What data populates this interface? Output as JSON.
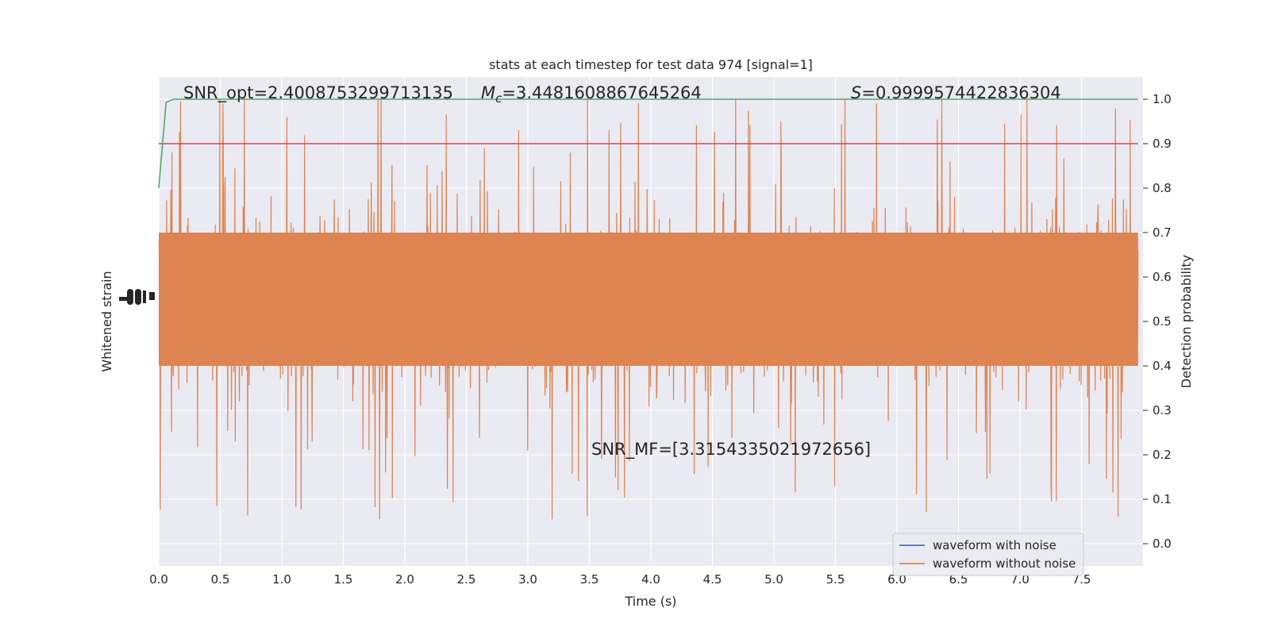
{
  "chart_data": {
    "type": "line",
    "title": "stats at each timestep for test data 974 [signal=1]",
    "xlabel": "Time (s)",
    "ylabel_left": "Whitened strain",
    "ylabel_right": "Detection probability",
    "xlim": [
      0.0,
      8.0
    ],
    "ylim_right": [
      -0.05,
      1.05
    ],
    "x_ticks": [
      "0.0",
      "0.5",
      "1.0",
      "1.5",
      "2.0",
      "2.5",
      "3.0",
      "3.5",
      "4.0",
      "4.5",
      "5.0",
      "5.5",
      "6.0",
      "6.5",
      "7.0",
      "7.5"
    ],
    "y_ticks_right": [
      "0.0",
      "0.1",
      "0.2",
      "0.3",
      "0.4",
      "0.5",
      "0.6",
      "0.7",
      "0.8",
      "0.9",
      "1.0"
    ],
    "grid": true,
    "legend_placement": "lower-right",
    "annotations": {
      "snr_opt": "SNR_opt=2.4008753299713135",
      "mc_prefix": "M",
      "mc_sub": "c",
      "mc_value": "=3.4481608867645264",
      "s_prefix": "S",
      "s_value": "=0.9999574422836304",
      "snr_mf": "SNR_MF=[3.3154335021972656]"
    },
    "series": [
      {
        "name": "waveform with noise",
        "color": "#4c72b0",
        "kind": "whitened strain (hidden behind orange trace)"
      },
      {
        "name": "waveform without noise",
        "color": "#dd8452",
        "kind": "whitened strain, dense noise band",
        "envelope": {
          "center": 0.55,
          "dense_band": [
            0.4,
            0.7
          ],
          "max": 1.0,
          "min": 0.0
        }
      },
      {
        "color": "#55a868",
        "kind": "detection probability",
        "x": [
          0.0,
          0.06,
          0.12,
          7.96
        ],
        "y": [
          0.8,
          0.993,
          1.0,
          1.0
        ]
      },
      {
        "color": "#c44e52",
        "kind": "threshold",
        "x": [
          0.0,
          7.96
        ],
        "y": [
          0.9,
          0.9
        ]
      }
    ],
    "colors": {
      "plot_bg": "#eaeaf2",
      "grid": "#ffffff",
      "text": "#262626"
    }
  }
}
